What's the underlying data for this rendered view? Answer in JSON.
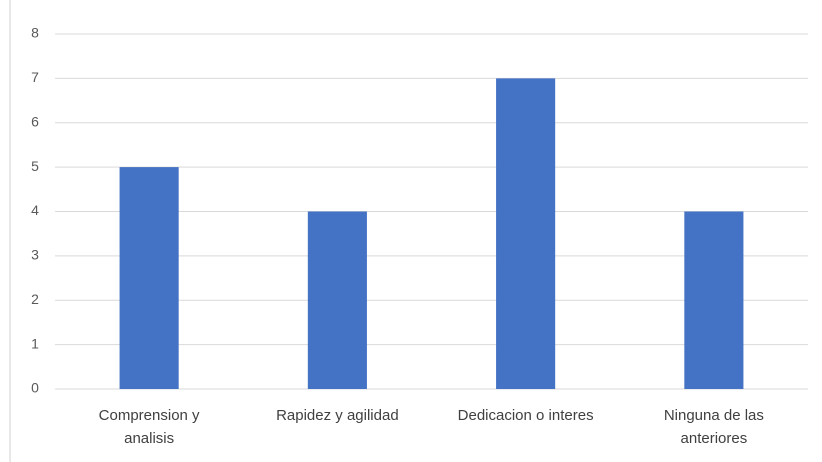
{
  "chart_data": {
    "type": "bar",
    "categories": [
      "Comprension y analisis",
      "Rapidez y agilidad",
      "Dedicacion o interes",
      "Ninguna de las anteriores"
    ],
    "values": [
      5,
      4,
      7,
      4
    ],
    "color": "#4472c4",
    "ylim": [
      0,
      8
    ],
    "yticks": [
      0,
      1,
      2,
      3,
      4,
      5,
      6,
      7,
      8
    ],
    "grid": true
  }
}
